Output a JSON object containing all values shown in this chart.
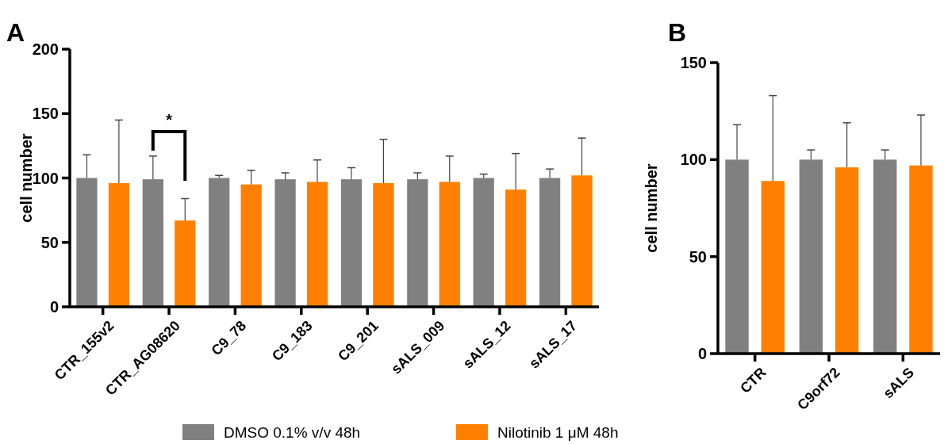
{
  "chart_data": [
    {
      "type": "bar",
      "title": "A",
      "ylabel": "cell number",
      "categories": [
        "CTR_155v2",
        "CTR_AG08620",
        "C9_78",
        "C9_183",
        "C9_201",
        "sALS_009",
        "sALS_12",
        "sALS_17"
      ],
      "series": [
        {
          "name": "DMSO 0.1% v/v 48h",
          "color": "#808080",
          "values": [
            100,
            99,
            100,
            99,
            99,
            99,
            100,
            100
          ],
          "errors": [
            [
              100,
              118
            ],
            [
              99,
              117
            ],
            [
              100,
              102
            ],
            [
              99,
              104
            ],
            [
              99,
              108
            ],
            [
              99,
              104
            ],
            [
              100,
              103
            ],
            [
              100,
              107
            ]
          ]
        },
        {
          "name": "Nilotinib 1 μM 48h",
          "color": "#ff8000",
          "values": [
            96,
            67,
            95,
            97,
            96,
            97,
            91,
            102
          ],
          "errors": [
            [
              96,
              145
            ],
            [
              67,
              84
            ],
            [
              95,
              106
            ],
            [
              97,
              114
            ],
            [
              96,
              130
            ],
            [
              97,
              117
            ],
            [
              91,
              119
            ],
            [
              102,
              131
            ]
          ]
        }
      ],
      "ylim": [
        0,
        200
      ],
      "yticks": [
        0,
        50,
        100,
        150,
        200
      ],
      "grid": false,
      "legend": "bottom",
      "annotations": [
        "*"
      ]
    },
    {
      "type": "bar",
      "title": "B",
      "ylabel": "cell number",
      "categories": [
        "CTR",
        "C9orf72",
        "sALS"
      ],
      "series": [
        {
          "color": "#808080",
          "values": [
            100,
            100,
            100
          ],
          "errors": [
            [
              100,
              118
            ],
            [
              100,
              105
            ],
            [
              100,
              105
            ]
          ]
        },
        {
          "color": "#ff8000",
          "values": [
            89,
            96,
            97
          ],
          "errors": [
            [
              89,
              133
            ],
            [
              96,
              119
            ],
            [
              97,
              123
            ]
          ]
        }
      ],
      "ylim": [
        0,
        150
      ],
      "yticks": [
        0,
        50,
        100,
        150
      ],
      "grid": false
    }
  ]
}
